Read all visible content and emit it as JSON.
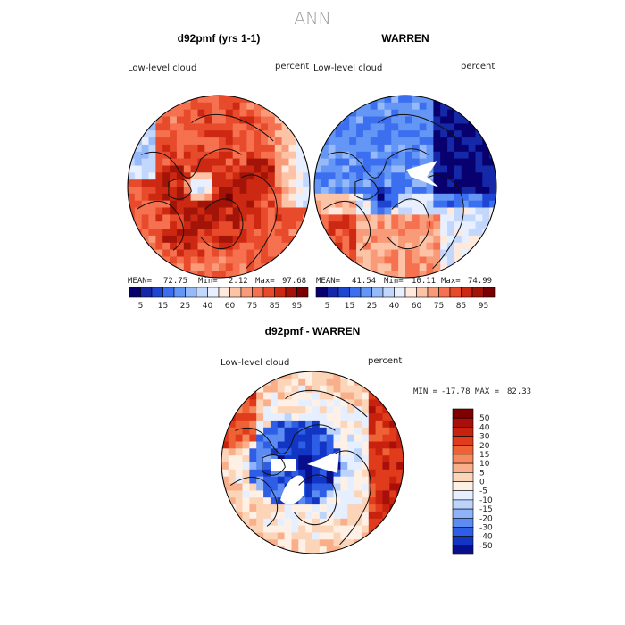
{
  "figure_title": "ANN",
  "chart_data": [
    {
      "type": "heatmap",
      "title": "d92pmf (yrs 1-1)",
      "field_label": "Low-level cloud",
      "unit_label": "percent",
      "stats": {
        "mean": "72.75",
        "min": "2.12",
        "max": "97.68"
      },
      "stats_text": {
        "mean_label": "MEAN=",
        "mean": "72.75",
        "min_label": "Min=",
        "min": "2.12",
        "max_label": "Max=",
        "max": "97.68"
      },
      "projection": "north polar stereographic",
      "color_scale": {
        "tick_labels": [
          "5",
          "15",
          "25",
          "40",
          "60",
          "75",
          "85",
          "95"
        ],
        "colors": [
          "#08006e",
          "#1428a8",
          "#1e46d2",
          "#3c6ef0",
          "#6496f5",
          "#96b9fa",
          "#c3d7fc",
          "#e8f0ff",
          "#ffe8dc",
          "#fcc3a6",
          "#f99a78",
          "#f5714f",
          "#e84a2c",
          "#cd2812",
          "#a31408",
          "#780000"
        ]
      }
    },
    {
      "type": "heatmap",
      "title": "WARREN",
      "field_label": "Low-level cloud",
      "unit_label": "percent",
      "stats": {
        "mean": "41.54",
        "min": "10.11",
        "max": "74.99"
      },
      "stats_text": {
        "mean_label": "MEAN=",
        "mean": "41.54",
        "min_label": "Min=",
        "min": "10.11",
        "max_label": "Max=",
        "max": "74.99"
      },
      "projection": "north polar stereographic",
      "color_scale": {
        "tick_labels": [
          "5",
          "15",
          "25",
          "40",
          "60",
          "75",
          "85",
          "95"
        ],
        "colors": [
          "#08006e",
          "#1428a8",
          "#1e46d2",
          "#3c6ef0",
          "#6496f5",
          "#96b9fa",
          "#c3d7fc",
          "#e8f0ff",
          "#ffe8dc",
          "#fcc3a6",
          "#f99a78",
          "#f5714f",
          "#e84a2c",
          "#cd2812",
          "#a31408",
          "#780000"
        ]
      }
    },
    {
      "type": "heatmap",
      "title": "d92pmf - WARREN",
      "field_label": "Low-level cloud",
      "unit_label": "percent",
      "stats": {
        "min": "-17.78",
        "max": "82.33"
      },
      "stats_text": {
        "min_label": "MIN =",
        "min": "-17.78",
        "max_label": "MAX =",
        "max": "82.33"
      },
      "projection": "north polar stereographic",
      "color_scale": {
        "tick_labels": [
          "50",
          "40",
          "30",
          "20",
          "15",
          "10",
          "5",
          "0",
          "-5",
          "-10",
          "-15",
          "-20",
          "-30",
          "-40",
          "-50"
        ],
        "colors": [
          "#800000",
          "#a80e0a",
          "#c8220f",
          "#e03c1c",
          "#ef6236",
          "#f58a5e",
          "#f9b08a",
          "#fcd4b8",
          "#fff0e6",
          "#e6efff",
          "#bcd3fc",
          "#8fb2f8",
          "#5c8bf2",
          "#2f5ee6",
          "#1236c3",
          "#080e8c"
        ]
      }
    }
  ]
}
